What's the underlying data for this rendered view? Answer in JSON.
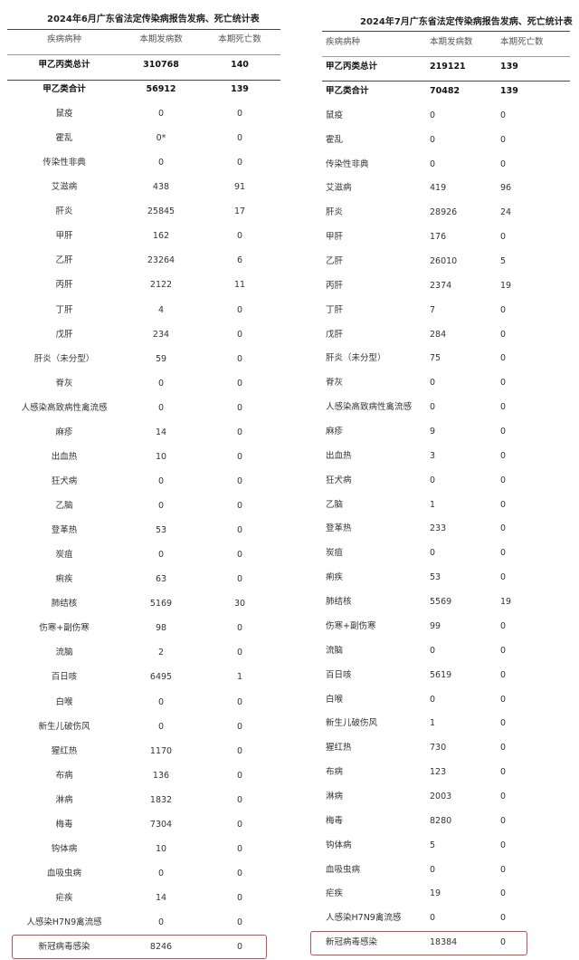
{
  "june": {
    "title": "2024年6月广东省法定传染病报告发病、死亡统计表",
    "headers": [
      "疾病病种",
      "本期发病数",
      "本期死亡数"
    ],
    "total": [
      "甲乙丙类总计",
      "310768",
      "140"
    ],
    "rows": [
      [
        "甲乙类合计",
        "56912",
        "139"
      ],
      [
        "鼠疫",
        "0",
        "0"
      ],
      [
        "霍乱",
        "0*",
        "0"
      ],
      [
        "传染性非典",
        "0",
        "0"
      ],
      [
        "艾滋病",
        "438",
        "91"
      ],
      [
        "肝炎",
        "25845",
        "17"
      ],
      [
        "甲肝",
        "162",
        "0"
      ],
      [
        "乙肝",
        "23264",
        "6"
      ],
      [
        "丙肝",
        "2122",
        "11"
      ],
      [
        "丁肝",
        "4",
        "0"
      ],
      [
        "戊肝",
        "234",
        "0"
      ],
      [
        "肝炎（未分型）",
        "59",
        "0"
      ],
      [
        "脊灰",
        "0",
        "0"
      ],
      [
        "人感染高致病性禽流感",
        "0",
        "0"
      ],
      [
        "麻疹",
        "14",
        "0"
      ],
      [
        "出血热",
        "10",
        "0"
      ],
      [
        "狂犬病",
        "0",
        "0"
      ],
      [
        "乙脑",
        "0",
        "0"
      ],
      [
        "登革热",
        "53",
        "0"
      ],
      [
        "炭疽",
        "0",
        "0"
      ],
      [
        "痢疾",
        "63",
        "0"
      ],
      [
        "肺结核",
        "5169",
        "30"
      ],
      [
        "伤寒+副伤寒",
        "98",
        "0"
      ],
      [
        "流脑",
        "2",
        "0"
      ],
      [
        "百日咳",
        "6495",
        "1"
      ],
      [
        "白喉",
        "0",
        "0"
      ],
      [
        "新生儿破伤风",
        "0",
        "0"
      ],
      [
        "猩红热",
        "1170",
        "0"
      ],
      [
        "布病",
        "136",
        "0"
      ],
      [
        "淋病",
        "1832",
        "0"
      ],
      [
        "梅毒",
        "7304",
        "0"
      ],
      [
        "钩体病",
        "10",
        "0"
      ],
      [
        "血吸虫病",
        "0",
        "0"
      ],
      [
        "疟疾",
        "14",
        "0"
      ],
      [
        "人感染H7N9禽流感",
        "0",
        "0"
      ],
      [
        "新冠病毒感染",
        "8246",
        "0"
      ]
    ]
  },
  "july": {
    "title": "2024年7月广东省法定传染病报告发病、死亡统计表",
    "headers": [
      "疾病病种",
      "本期发病数",
      "本期死亡数"
    ],
    "total": [
      "甲乙丙类总计",
      "219121",
      "139"
    ],
    "rows": [
      [
        "甲乙类合计",
        "70482",
        "139"
      ],
      [
        "鼠疫",
        "0",
        "0"
      ],
      [
        "霍乱",
        "0",
        "0"
      ],
      [
        "传染性非典",
        "0",
        "0"
      ],
      [
        "艾滋病",
        "419",
        "96"
      ],
      [
        "肝炎",
        "28926",
        "24"
      ],
      [
        "甲肝",
        "176",
        "0"
      ],
      [
        "乙肝",
        "26010",
        "5"
      ],
      [
        "丙肝",
        "2374",
        "19"
      ],
      [
        "丁肝",
        "7",
        "0"
      ],
      [
        "戊肝",
        "284",
        "0"
      ],
      [
        "肝炎（未分型）",
        "75",
        "0"
      ],
      [
        "脊灰",
        "0",
        "0"
      ],
      [
        "人感染高致病性禽流感",
        "0",
        "0"
      ],
      [
        "麻疹",
        "9",
        "0"
      ],
      [
        "出血热",
        "3",
        "0"
      ],
      [
        "狂犬病",
        "0",
        "0"
      ],
      [
        "乙脑",
        "1",
        "0"
      ],
      [
        "登革热",
        "233",
        "0"
      ],
      [
        "炭疽",
        "0",
        "0"
      ],
      [
        "痢疾",
        "53",
        "0"
      ],
      [
        "肺结核",
        "5569",
        "19"
      ],
      [
        "伤寒+副伤寒",
        "99",
        "0"
      ],
      [
        "流脑",
        "0",
        "0"
      ],
      [
        "百日咳",
        "5619",
        "0"
      ],
      [
        "白喉",
        "0",
        "0"
      ],
      [
        "新生儿破伤风",
        "1",
        "0"
      ],
      [
        "猩红热",
        "730",
        "0"
      ],
      [
        "布病",
        "123",
        "0"
      ],
      [
        "淋病",
        "2003",
        "0"
      ],
      [
        "梅毒",
        "8280",
        "0"
      ],
      [
        "钩体病",
        "5",
        "0"
      ],
      [
        "血吸虫病",
        "0",
        "0"
      ],
      [
        "疟疾",
        "19",
        "0"
      ],
      [
        "人感染H7N9禽流感",
        "0",
        "0"
      ],
      [
        "新冠病毒感染",
        "18384",
        "0"
      ]
    ]
  },
  "highlight_color": "#c0504d"
}
